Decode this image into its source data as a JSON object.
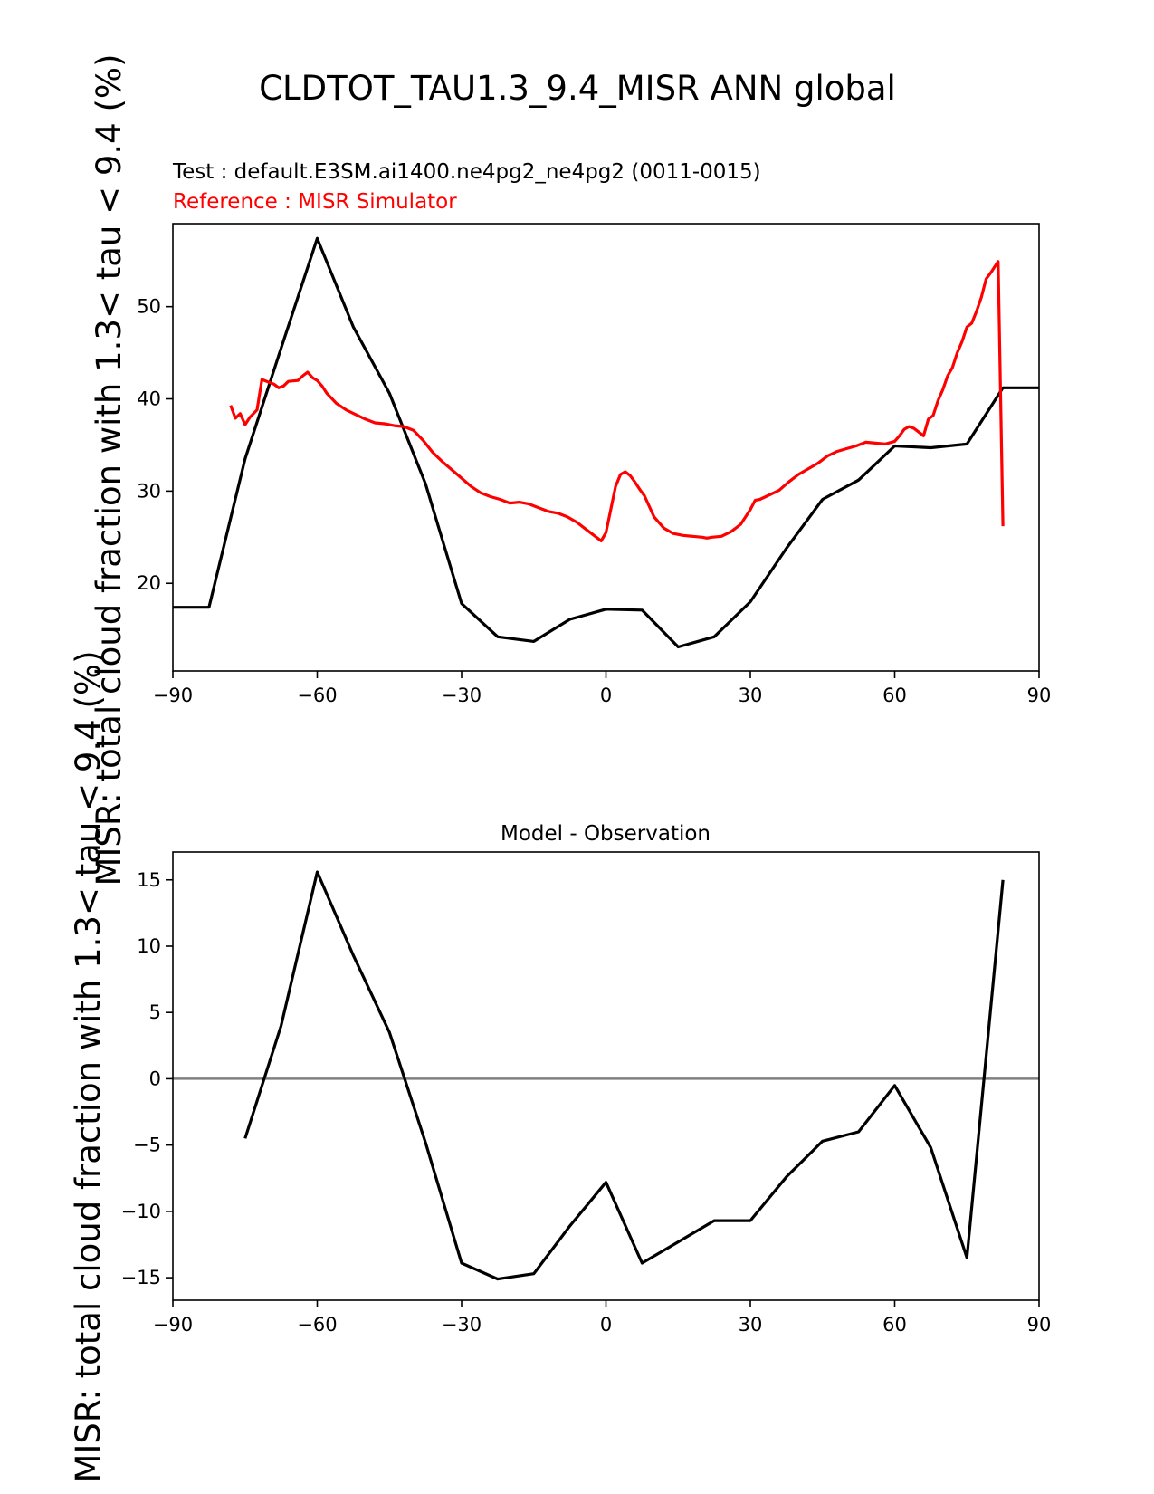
{
  "figure": {
    "title": "CLDTOT_TAU1.3_9.4_MISR ANN global",
    "ylabel": "MISR: total cloud fraction with 1.3< tau < 9.4 (%)",
    "colors": {
      "test": "#000000",
      "reference": "#ff0000",
      "zero_line": "#808080"
    }
  },
  "chart_data": [
    {
      "type": "line",
      "subtitle_test": "Test : default.E3SM.ai1400.ne4pg2_ne4pg2 (0011-0015)",
      "subtitle_ref": "Reference : MISR Simulator",
      "xlim": [
        -90,
        90
      ],
      "ylim": [
        10.5,
        59
      ],
      "xticks": [
        -90,
        -60,
        -30,
        0,
        30,
        60,
        90
      ],
      "yticks": [
        20,
        30,
        40,
        50
      ],
      "series": [
        {
          "name": "Test",
          "color": "#000000",
          "x": [
            -90,
            -82.5,
            -75,
            -67.5,
            -60,
            -52.5,
            -45,
            -37.5,
            -30,
            -22.5,
            -15,
            -7.5,
            0,
            7.5,
            15,
            22.5,
            30,
            37.5,
            45,
            52.5,
            60,
            67.5,
            75,
            82.5,
            90
          ],
          "y": [
            17.4,
            17.4,
            33.5,
            45.5,
            57.4,
            47.8,
            40.6,
            30.8,
            17.8,
            14.2,
            13.7,
            16.1,
            17.2,
            17.1,
            13.1,
            14.2,
            18.0,
            23.8,
            29.1,
            31.2,
            34.9,
            34.7,
            35.1,
            41.2,
            41.2
          ]
        },
        {
          "name": "Reference",
          "color": "#ff0000",
          "x": [
            -78,
            -77,
            -76,
            -75,
            -74,
            -72.5,
            -71.5,
            -70,
            -69,
            -68,
            -67,
            -66,
            -64,
            -63,
            -62,
            -61,
            -60,
            -59,
            -58,
            -56,
            -54,
            -52,
            -50,
            -48,
            -46,
            -44,
            -42,
            -40,
            -38,
            -36,
            -34,
            -32,
            -30,
            -28,
            -26,
            -24,
            -22,
            -20,
            -18,
            -16,
            -14,
            -12,
            -10,
            -8,
            -6,
            -4,
            -2,
            -1,
            0,
            1,
            2,
            3,
            4,
            5,
            6,
            7,
            8,
            10,
            12,
            14,
            16,
            18,
            20,
            21,
            22,
            24,
            26,
            28,
            30,
            31,
            32,
            34,
            36,
            38,
            40,
            42,
            44,
            46,
            48,
            50,
            52,
            53,
            54,
            56,
            58,
            60,
            61,
            62,
            63,
            64,
            65,
            66,
            67,
            68,
            69,
            70,
            71,
            72,
            73,
            74,
            75,
            76,
            77,
            78,
            79,
            80,
            81.5,
            82.5
          ],
          "y": [
            39.3,
            37.9,
            38.4,
            37.2,
            38.0,
            38.8,
            42.1,
            41.8,
            41.6,
            41.2,
            41.4,
            41.9,
            42.0,
            42.5,
            42.9,
            42.3,
            42.0,
            41.4,
            40.6,
            39.5,
            38.8,
            38.3,
            37.8,
            37.4,
            37.3,
            37.1,
            37.0,
            36.6,
            35.5,
            34.2,
            33.2,
            32.3,
            31.4,
            30.5,
            29.8,
            29.4,
            29.1,
            28.7,
            28.8,
            28.6,
            28.2,
            27.8,
            27.6,
            27.2,
            26.6,
            25.8,
            25.0,
            24.6,
            25.5,
            28.0,
            30.5,
            31.8,
            32.1,
            31.7,
            31.0,
            30.2,
            29.5,
            27.2,
            26.0,
            25.4,
            25.2,
            25.1,
            25.0,
            24.9,
            25.0,
            25.1,
            25.6,
            26.4,
            28.0,
            29.0,
            29.1,
            29.6,
            30.1,
            31.0,
            31.8,
            32.4,
            33.0,
            33.8,
            34.3,
            34.6,
            34.9,
            35.1,
            35.3,
            35.2,
            35.1,
            35.4,
            36.0,
            36.7,
            37.0,
            36.8,
            36.4,
            36.0,
            37.8,
            38.2,
            39.8,
            41.0,
            42.5,
            43.4,
            45.0,
            46.2,
            47.8,
            48.2,
            49.5,
            51.0,
            53.0,
            53.7,
            54.9,
            26.2
          ]
        }
      ]
    },
    {
      "type": "line",
      "title": "Model - Observation",
      "xlim": [
        -90,
        90
      ],
      "ylim": [
        -16.7,
        17.1
      ],
      "xticks": [
        -90,
        -60,
        -30,
        0,
        30,
        60,
        90
      ],
      "yticks": [
        -15,
        -10,
        -5,
        0,
        5,
        10,
        15
      ],
      "zero_line": true,
      "series": [
        {
          "name": "Model - Observation",
          "color": "#000000",
          "x": [
            -75,
            -67.5,
            -60,
            -52.5,
            -45,
            -37.5,
            -30,
            -22.5,
            -15,
            -7.5,
            0,
            7.5,
            15,
            22.5,
            30,
            37.5,
            45,
            52.5,
            60,
            67.5,
            75,
            82.5
          ],
          "y": [
            -4.5,
            4.0,
            15.6,
            9.3,
            3.5,
            -4.8,
            -13.9,
            -15.1,
            -14.7,
            -11.1,
            -7.8,
            -13.9,
            -12.3,
            -10.7,
            -10.7,
            -7.4,
            -4.7,
            -4.0,
            -0.5,
            -5.2,
            -13.5,
            15.0
          ]
        }
      ]
    }
  ]
}
